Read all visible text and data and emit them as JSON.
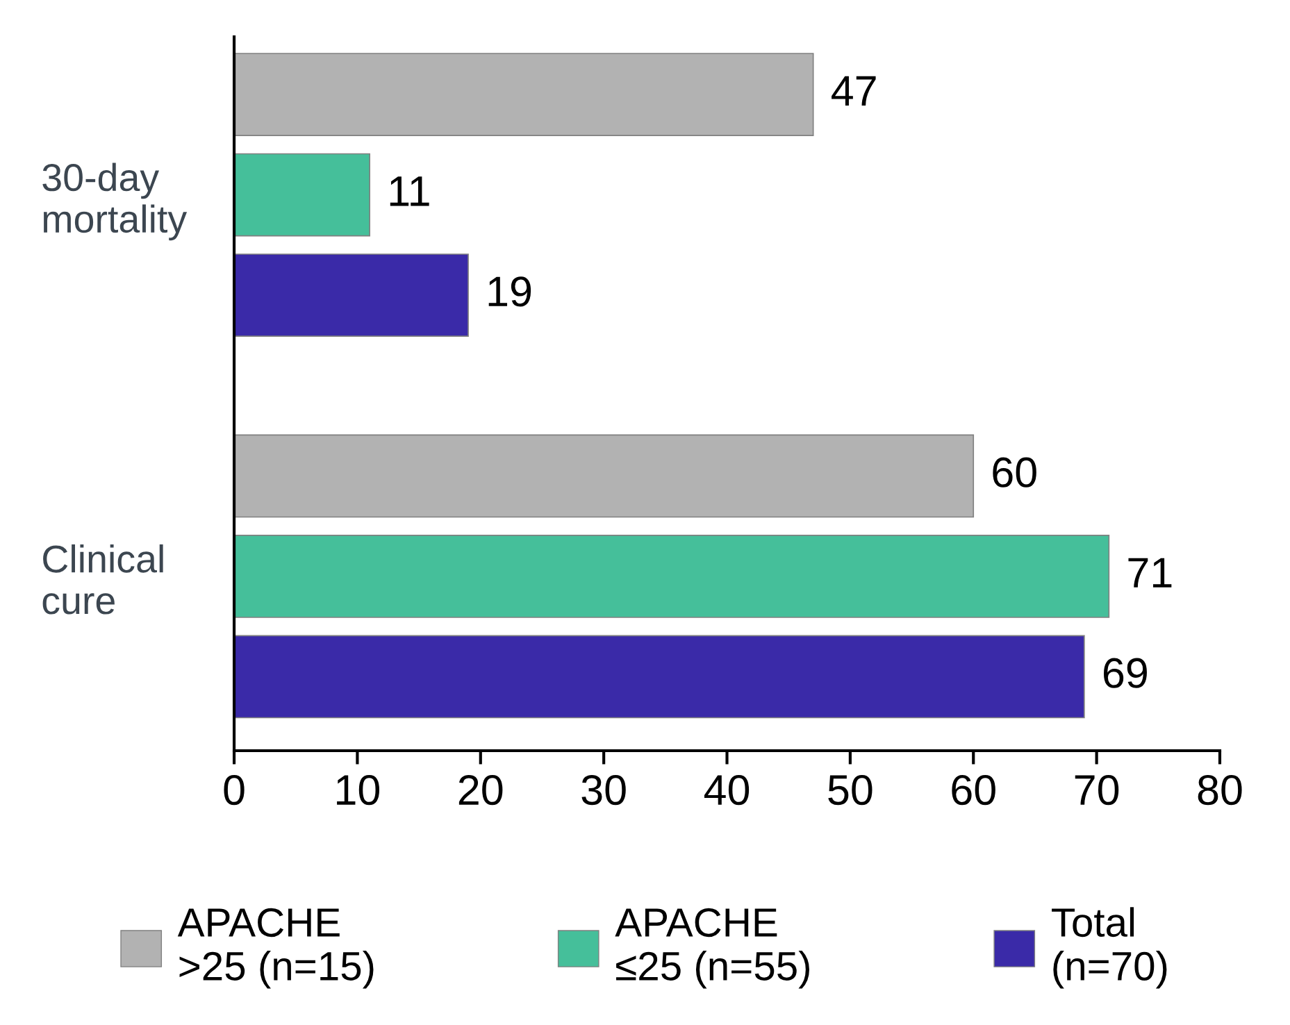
{
  "chart_data": {
    "type": "bar",
    "orientation": "horizontal",
    "categories": [
      "30-day\nmortality",
      "Clinical\ncure"
    ],
    "series": [
      {
        "name": "APACHE\n>25 (n=15)",
        "color": "#b2b2b2",
        "values": [
          47,
          60
        ]
      },
      {
        "name": "APACHE\n≤25 (n=55)",
        "color": "#45bf9a",
        "values": [
          11,
          71
        ]
      },
      {
        "name": "Total\n(n=70)",
        "color": "#3a2aa8",
        "values": [
          19,
          69
        ]
      }
    ],
    "xlim": [
      0,
      80
    ],
    "xticks": [
      0,
      10,
      20,
      30,
      40,
      50,
      60,
      70,
      80
    ],
    "data_labels": true,
    "grid": false,
    "legend": "bottom"
  }
}
